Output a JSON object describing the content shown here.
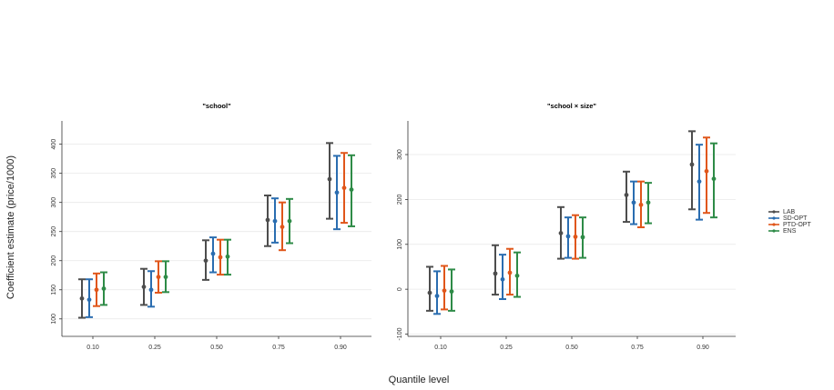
{
  "xlabel": "Quantile level",
  "ylabel": "Coefficient estimate (price/1000)",
  "chart_data": [
    {
      "type": "errorbar",
      "title": "\"school\"",
      "categories": [
        "0.10",
        "0.25",
        "0.50",
        "0.75",
        "0.90"
      ],
      "ylim": [
        70,
        440
      ],
      "yticks": [
        100,
        150,
        200,
        250,
        300,
        350,
        400
      ],
      "grid": true,
      "series": [
        {
          "name": "LAB",
          "color": "#4d4d4d",
          "values": [
            135,
            155,
            200,
            270,
            340
          ],
          "lower": [
            102,
            124,
            167,
            225,
            272
          ],
          "upper": [
            168,
            186,
            235,
            312,
            402
          ]
        },
        {
          "name": "SD-OPT",
          "color": "#2a6db0",
          "values": [
            133,
            150,
            212,
            268,
            317
          ],
          "lower": [
            103,
            121,
            180,
            231,
            254
          ],
          "upper": [
            168,
            182,
            240,
            307,
            380
          ]
        },
        {
          "name": "PTD-OPT",
          "color": "#e0561a",
          "values": [
            150,
            172,
            206,
            258,
            325
          ],
          "lower": [
            122,
            145,
            176,
            218,
            265
          ],
          "upper": [
            178,
            199,
            236,
            300,
            385
          ]
        },
        {
          "name": "ENS",
          "color": "#2e8b47",
          "values": [
            152,
            172,
            207,
            268,
            322
          ],
          "lower": [
            124,
            146,
            176,
            230,
            259
          ],
          "upper": [
            180,
            199,
            236,
            306,
            381
          ]
        }
      ]
    },
    {
      "type": "errorbar",
      "title": "\"school × size\"",
      "categories": [
        "0.10",
        "0.25",
        "0.50",
        "0.75",
        "0.90"
      ],
      "ylim": [
        -105,
        375
      ],
      "yticks": [
        -100,
        0,
        100,
        200,
        300
      ],
      "grid": true,
      "series": [
        {
          "color": "#4d4d4d",
          "values": [
            -8,
            35,
            125,
            210,
            278
          ],
          "lower": [
            -48,
            -12,
            68,
            150,
            178
          ],
          "upper": [
            50,
            98,
            183,
            262,
            352
          ]
        },
        {
          "color": "#2a6db0",
          "values": [
            -15,
            22,
            118,
            193,
            240
          ],
          "lower": [
            -55,
            -22,
            70,
            145,
            155
          ],
          "upper": [
            40,
            77,
            160,
            240,
            322
          ]
        },
        {
          "color": "#e0561a",
          "values": [
            -3,
            37,
            117,
            188,
            263
          ],
          "lower": [
            -45,
            -12,
            68,
            138,
            170
          ],
          "upper": [
            52,
            90,
            165,
            240,
            338
          ]
        },
        {
          "color": "#2e8b47",
          "values": [
            -5,
            30,
            116,
            193,
            246
          ],
          "lower": [
            -48,
            -17,
            70,
            147,
            160
          ],
          "upper": [
            44,
            82,
            160,
            237,
            325
          ]
        }
      ]
    }
  ]
}
